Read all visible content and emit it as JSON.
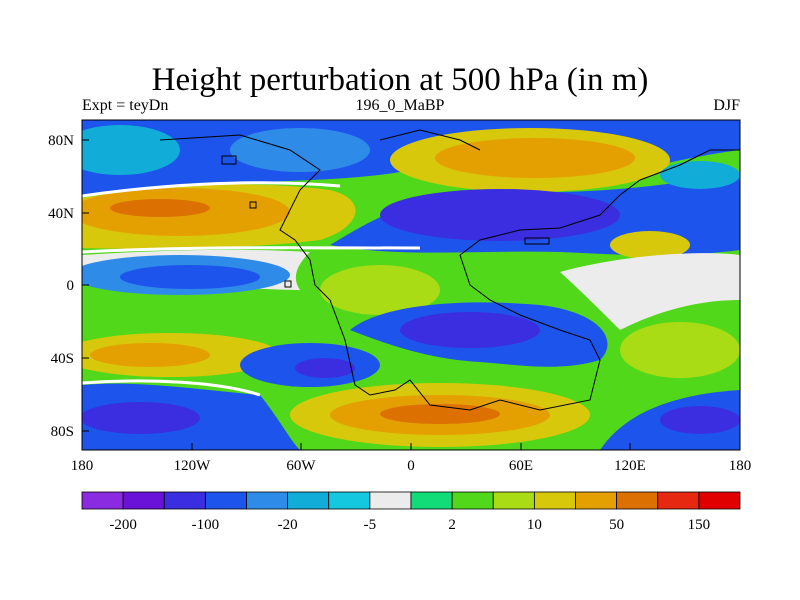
{
  "title": "Height perturbation at 500 hPa (in m)",
  "subtitle_left": "Expt = teyDn",
  "subtitle_center": "196_0_MaBP",
  "subtitle_right": "DJF",
  "lat_ticks": [
    "80N",
    "40N",
    "0",
    "40S",
    "80S"
  ],
  "lon_ticks": [
    "180",
    "120W",
    "60W",
    "0",
    "60E",
    "120E",
    "180"
  ],
  "colorbar": {
    "colors": [
      "#8a2be2",
      "#6a12d8",
      "#3a2ee0",
      "#1d55ec",
      "#2f8be8",
      "#12acd8",
      "#14c8e0",
      "#ececec",
      "#12dc78",
      "#52d81a",
      "#aadc16",
      "#d8c80c",
      "#e4a000",
      "#dc7000",
      "#e62810",
      "#e00000"
    ],
    "labels": [
      "-200",
      "-100",
      "-20",
      "-5",
      "2",
      "10",
      "50",
      "150"
    ]
  },
  "colors": {
    "strong_negative": "#3a2ee0",
    "negative": "#1d55ec",
    "weak_negative": "#12acd8",
    "neutral": "#ececec",
    "weak_positive": "#52d81a",
    "positive": "#d8c80c",
    "strong_positive": "#dc7000"
  }
}
